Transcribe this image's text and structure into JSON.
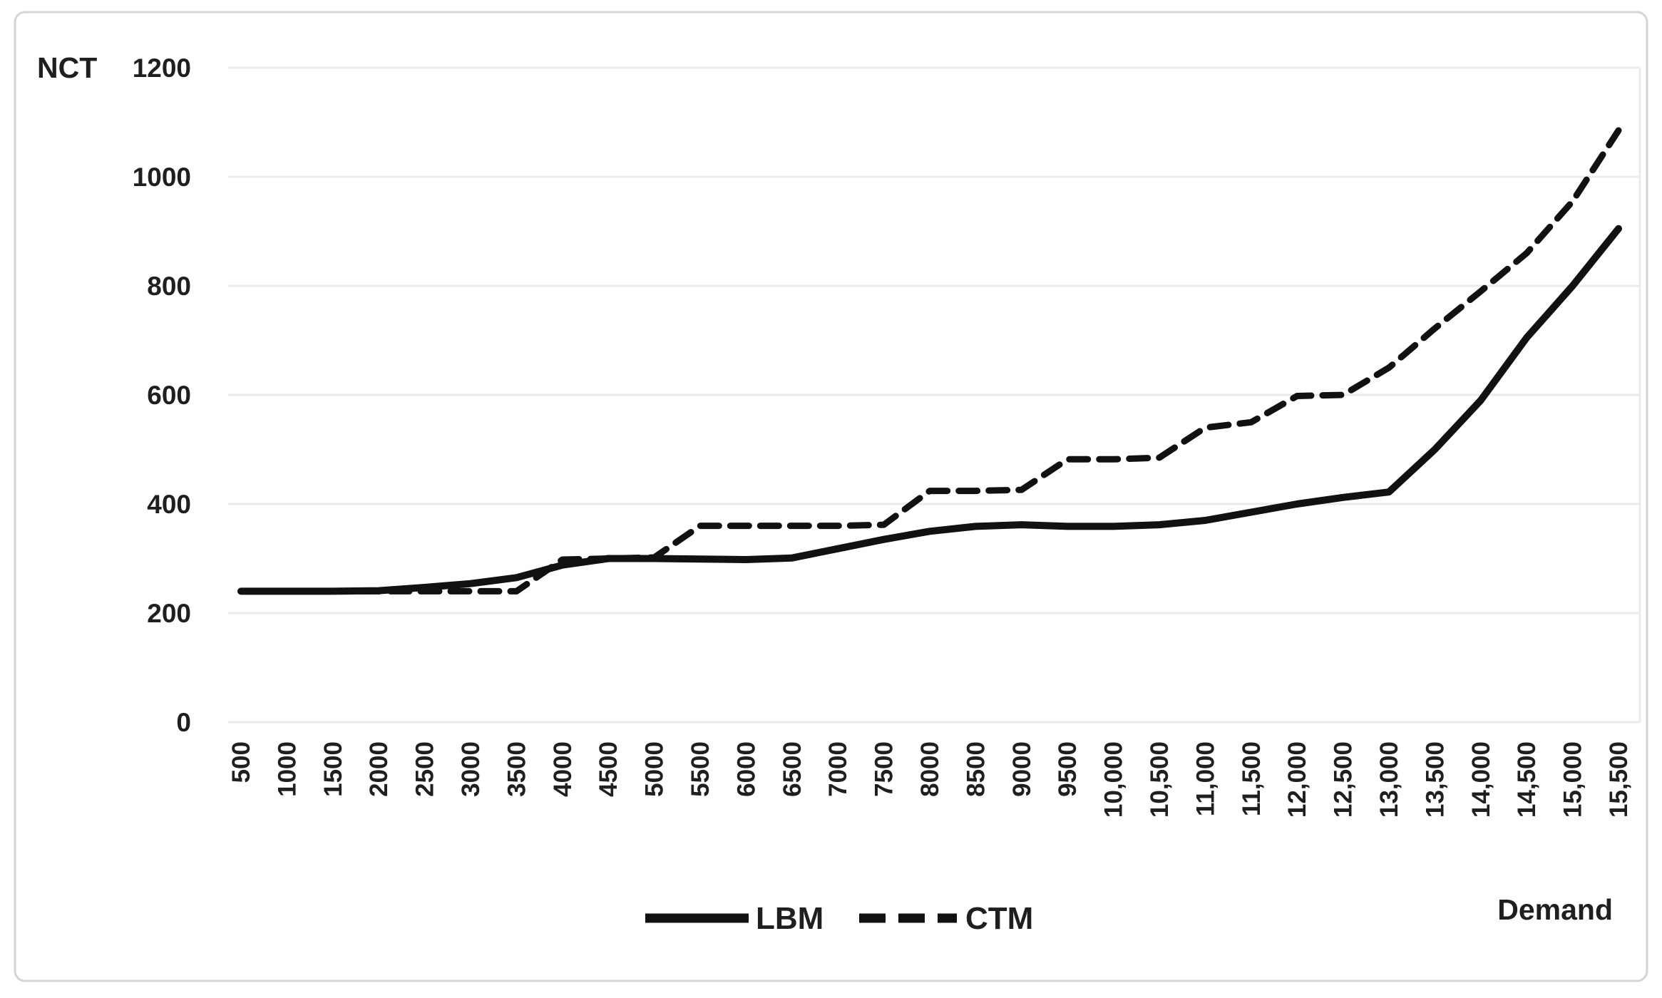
{
  "figure": {
    "y_axis_title": "NCT",
    "x_axis_title": "Demand"
  },
  "colors": {
    "line": "#111111",
    "gridline": "#ebebeb",
    "frame_border": "#d5d5d5",
    "text": "#1f1f1f",
    "background": "#ffffff"
  },
  "chart_data": {
    "type": "line",
    "title": "",
    "xlabel": "Demand",
    "ylabel": "NCT",
    "ylim": [
      0,
      1200
    ],
    "yticks": [
      0,
      200,
      400,
      600,
      800,
      1000,
      1200
    ],
    "grid": "horizontal",
    "legend_position": "bottom",
    "categories": [
      "500",
      "1000",
      "1500",
      "2000",
      "2500",
      "3000",
      "3500",
      "4000",
      "4500",
      "5000",
      "5500",
      "6000",
      "6500",
      "7000",
      "7500",
      "8000",
      "8500",
      "9000",
      "9500",
      "10,000",
      "10,500",
      "11,000",
      "11,500",
      "12,000",
      "12,500",
      "13,000",
      "13,500",
      "14,000",
      "14,500",
      "15,000",
      "15,500"
    ],
    "series": [
      {
        "name": "LBM",
        "style": "solid",
        "values": [
          240,
          240,
          240,
          241,
          247,
          254,
          265,
          288,
          300,
          300,
          299,
          298,
          301,
          318,
          335,
          350,
          359,
          362,
          359,
          359,
          362,
          370,
          385,
          400,
          412,
          422,
          500,
          590,
          705,
          800,
          905
        ]
      },
      {
        "name": "CTM",
        "style": "dashed",
        "values": [
          240,
          240,
          240,
          240,
          240,
          240,
          240,
          298,
          300,
          302,
          360,
          360,
          360,
          360,
          362,
          424,
          424,
          426,
          482,
          482,
          485,
          540,
          550,
          598,
          600,
          650,
          722,
          790,
          860,
          955,
          1085
        ]
      }
    ]
  }
}
